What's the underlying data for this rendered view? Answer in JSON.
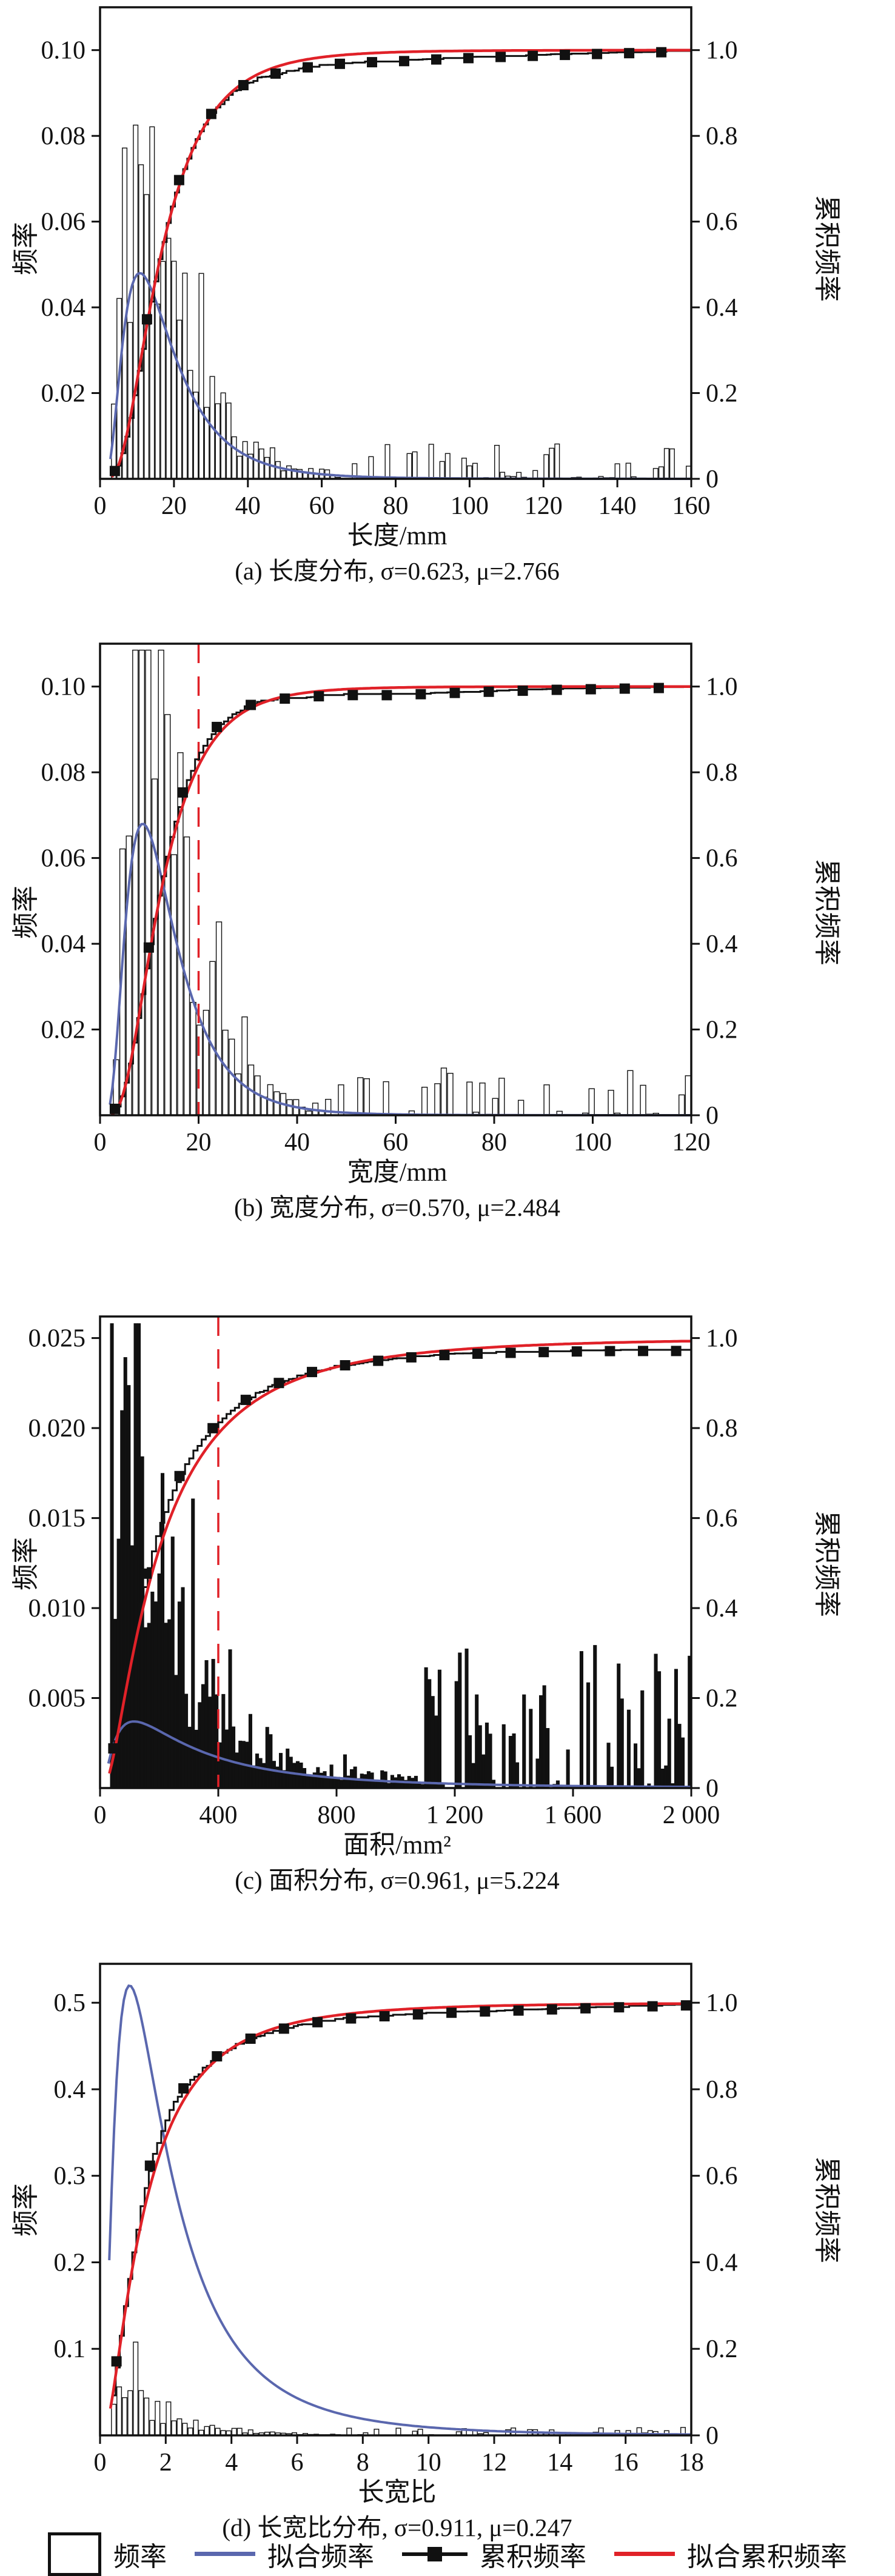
{
  "page": {
    "background": "#ffffff"
  },
  "colors": {
    "blue": "#5a67ae",
    "red": "#e02128",
    "ink": "#111111"
  },
  "shared": {
    "y_left_label": "频率",
    "y_right_label": "累积频率",
    "y_right_ticks": [
      {
        "v": 0,
        "l": "0"
      },
      {
        "v": 0.2,
        "l": "0.2"
      },
      {
        "v": 0.4,
        "l": "0.4"
      },
      {
        "v": 0.6,
        "l": "0.6"
      },
      {
        "v": 0.8,
        "l": "0.8"
      },
      {
        "v": 1.0,
        "l": "1.0"
      }
    ]
  },
  "legend": {
    "items": [
      {
        "label": "频率",
        "type": "histogram-box"
      },
      {
        "label": "拟合频率",
        "type": "blue-line"
      },
      {
        "label": "累积频率",
        "type": "black-line-square"
      },
      {
        "label": "拟合累积频率",
        "type": "red-line"
      }
    ]
  },
  "chart_data": [
    {
      "id": "a",
      "type": "bar",
      "caption": "(a) 长度分布, σ=0.623, μ=2.766",
      "xlabel": "长度/mm",
      "sigma": 0.623,
      "mu": 2.766,
      "x_max": 160,
      "xticks": [
        {
          "v": 0,
          "l": "0"
        },
        {
          "v": 20,
          "l": "20"
        },
        {
          "v": 40,
          "l": "40"
        },
        {
          "v": 60,
          "l": "60"
        },
        {
          "v": 80,
          "l": "80"
        },
        {
          "v": 100,
          "l": "100"
        },
        {
          "v": 120,
          "l": "120"
        },
        {
          "v": 140,
          "l": "140"
        },
        {
          "v": 160,
          "l": "160"
        }
      ],
      "y_left_max": 0.11,
      "yticks_left": [
        {
          "v": 0.02,
          "l": "0.02"
        },
        {
          "v": 0.04,
          "l": "0.04"
        },
        {
          "v": 0.06,
          "l": "0.06"
        },
        {
          "v": 0.08,
          "l": "0.08"
        },
        {
          "v": 0.1,
          "l": "0.10"
        }
      ],
      "y_right_max": 1.1,
      "blue_peak": 0.048,
      "vline_x": null,
      "hist": {
        "bins": 108,
        "xstart": 3.5,
        "env": 0.075,
        "clip": 0.108,
        "seed": 11,
        "fill": "#ffffff",
        "tail_keep": 0.62,
        "tail_lo": 0.02,
        "tail_hi": 0.09
      },
      "markers": {
        "start": 4,
        "step": 8.7,
        "count": 19
      },
      "emp_offsets": [
        [
          0,
          0
        ],
        [
          10,
          0.012
        ],
        [
          20,
          0.015
        ],
        [
          30,
          0.004
        ],
        [
          50,
          -0.018
        ],
        [
          80,
          -0.022
        ],
        [
          120,
          -0.012
        ],
        [
          160,
          -0.003
        ]
      ]
    },
    {
      "id": "b",
      "type": "bar",
      "caption": "(b) 宽度分布, σ=0.570, μ=2.484",
      "xlabel": "宽度/mm",
      "sigma": 0.57,
      "mu": 2.484,
      "x_max": 120,
      "xticks": [
        {
          "v": 0,
          "l": "0"
        },
        {
          "v": 20,
          "l": "20"
        },
        {
          "v": 40,
          "l": "40"
        },
        {
          "v": 60,
          "l": "60"
        },
        {
          "v": 80,
          "l": "80"
        },
        {
          "v": 100,
          "l": "100"
        },
        {
          "v": 120,
          "l": "120"
        }
      ],
      "y_left_max": 0.11,
      "yticks_left": [
        {
          "v": 0.02,
          "l": "0.02"
        },
        {
          "v": 0.04,
          "l": "0.04"
        },
        {
          "v": 0.06,
          "l": "0.06"
        },
        {
          "v": 0.08,
          "l": "0.08"
        },
        {
          "v": 0.1,
          "l": "0.10"
        }
      ],
      "y_right_max": 1.1,
      "blue_peak": 0.068,
      "vline_x": 20,
      "hist": {
        "bins": 92,
        "xstart": 2.5,
        "env": 0.102,
        "clip": 0.1085,
        "seed": 23,
        "fill": "#ffffff",
        "tail_keep": 0.6,
        "tail_lo": 0.02,
        "tail_hi": 0.09
      },
      "markers": {
        "start": 3,
        "step": 6.9,
        "count": 18
      },
      "emp_offsets": [
        [
          0,
          0
        ],
        [
          8,
          0.02
        ],
        [
          15,
          0.03
        ],
        [
          20,
          0.03
        ],
        [
          28,
          0.012
        ],
        [
          40,
          -0.01
        ],
        [
          60,
          -0.018
        ],
        [
          90,
          -0.008
        ],
        [
          120,
          -0.002
        ]
      ]
    },
    {
      "id": "c",
      "type": "bar",
      "caption": "(c) 面积分布, σ=0.961, μ=5.224",
      "xlabel": "面积/mm²",
      "sigma": 0.961,
      "mu": 5.224,
      "x_max": 2000,
      "xticks": [
        {
          "v": 0,
          "l": "0"
        },
        {
          "v": 400,
          "l": "400"
        },
        {
          "v": 800,
          "l": "800"
        },
        {
          "v": 1200,
          "l": "1 200"
        },
        {
          "v": 1600,
          "l": "1 600"
        },
        {
          "v": 2000,
          "l": "2 000"
        }
      ],
      "y_left_max": 0.0262,
      "yticks_left": [
        {
          "v": 0.005,
          "l": "0.005"
        },
        {
          "v": 0.01,
          "l": "0.010"
        },
        {
          "v": 0.015,
          "l": "0.015"
        },
        {
          "v": 0.02,
          "l": "0.020"
        },
        {
          "v": 0.025,
          "l": "0.025"
        }
      ],
      "y_right_max": 1.048,
      "blue_peak": 0.0037,
      "blue_mu": 5.745,
      "blue_sigma": 1.0,
      "vline_x": 400,
      "hist": {
        "bins": 175,
        "xstart": 35,
        "env": 0.021,
        "clip": 0.0258,
        "seed": 37,
        "fill": "#111111",
        "tail_keep": 0.45,
        "tail_lo": 0.05,
        "tail_hi": 0.33
      },
      "markers": {
        "start": 45,
        "step": 112,
        "count": 18
      },
      "emp_offsets": [
        [
          0,
          0
        ],
        [
          100,
          0.04
        ],
        [
          200,
          0.05
        ],
        [
          300,
          0.04
        ],
        [
          400,
          0.024
        ],
        [
          600,
          0.01
        ],
        [
          900,
          -0.004
        ],
        [
          1400,
          -0.015
        ],
        [
          2000,
          -0.022
        ]
      ]
    },
    {
      "id": "d",
      "type": "bar",
      "caption": "(d) 长宽比分布, σ=0.911, μ=0.247",
      "xlabel": "长宽比",
      "sigma": 0.911,
      "mu": 0.247,
      "x_max": 18,
      "xticks": [
        {
          "v": 0,
          "l": "0"
        },
        {
          "v": 2,
          "l": "2"
        },
        {
          "v": 4,
          "l": "4"
        },
        {
          "v": 6,
          "l": "6"
        },
        {
          "v": 8,
          "l": "8"
        },
        {
          "v": 10,
          "l": "10"
        },
        {
          "v": 12,
          "l": "12"
        },
        {
          "v": 14,
          "l": "14"
        },
        {
          "v": 16,
          "l": "16"
        },
        {
          "v": 18,
          "l": "18"
        }
      ],
      "y_left_max": 0.545,
      "yticks_left": [
        {
          "v": 0.1,
          "l": "0.1"
        },
        {
          "v": 0.2,
          "l": "0.2"
        },
        {
          "v": 0.3,
          "l": "0.3"
        },
        {
          "v": 0.4,
          "l": "0.4"
        },
        {
          "v": 0.5,
          "l": "0.5"
        }
      ],
      "y_right_max": 1.09,
      "blue_peak": 0.52,
      "blue_mu": 0.617,
      "blue_sigma": 0.85,
      "vline_x": null,
      "hist": {
        "bins": 108,
        "xstart": 0.35,
        "env": 0.062,
        "clip": 0.54,
        "seed": 51,
        "fill": "#ffffff",
        "tail_keep": 0.55,
        "tail_lo": 0.03,
        "tail_hi": 0.12
      },
      "markers": {
        "start": 0.5,
        "step": 1.02,
        "count": 18
      },
      "emp_offsets": [
        [
          0,
          0
        ],
        [
          1,
          0.04
        ],
        [
          1.6,
          0.05
        ],
        [
          2.2,
          0.04
        ],
        [
          3,
          0.012
        ],
        [
          5,
          -0.006
        ],
        [
          9,
          -0.014
        ],
        [
          13,
          -0.012
        ],
        [
          18,
          -0.004
        ]
      ]
    }
  ]
}
